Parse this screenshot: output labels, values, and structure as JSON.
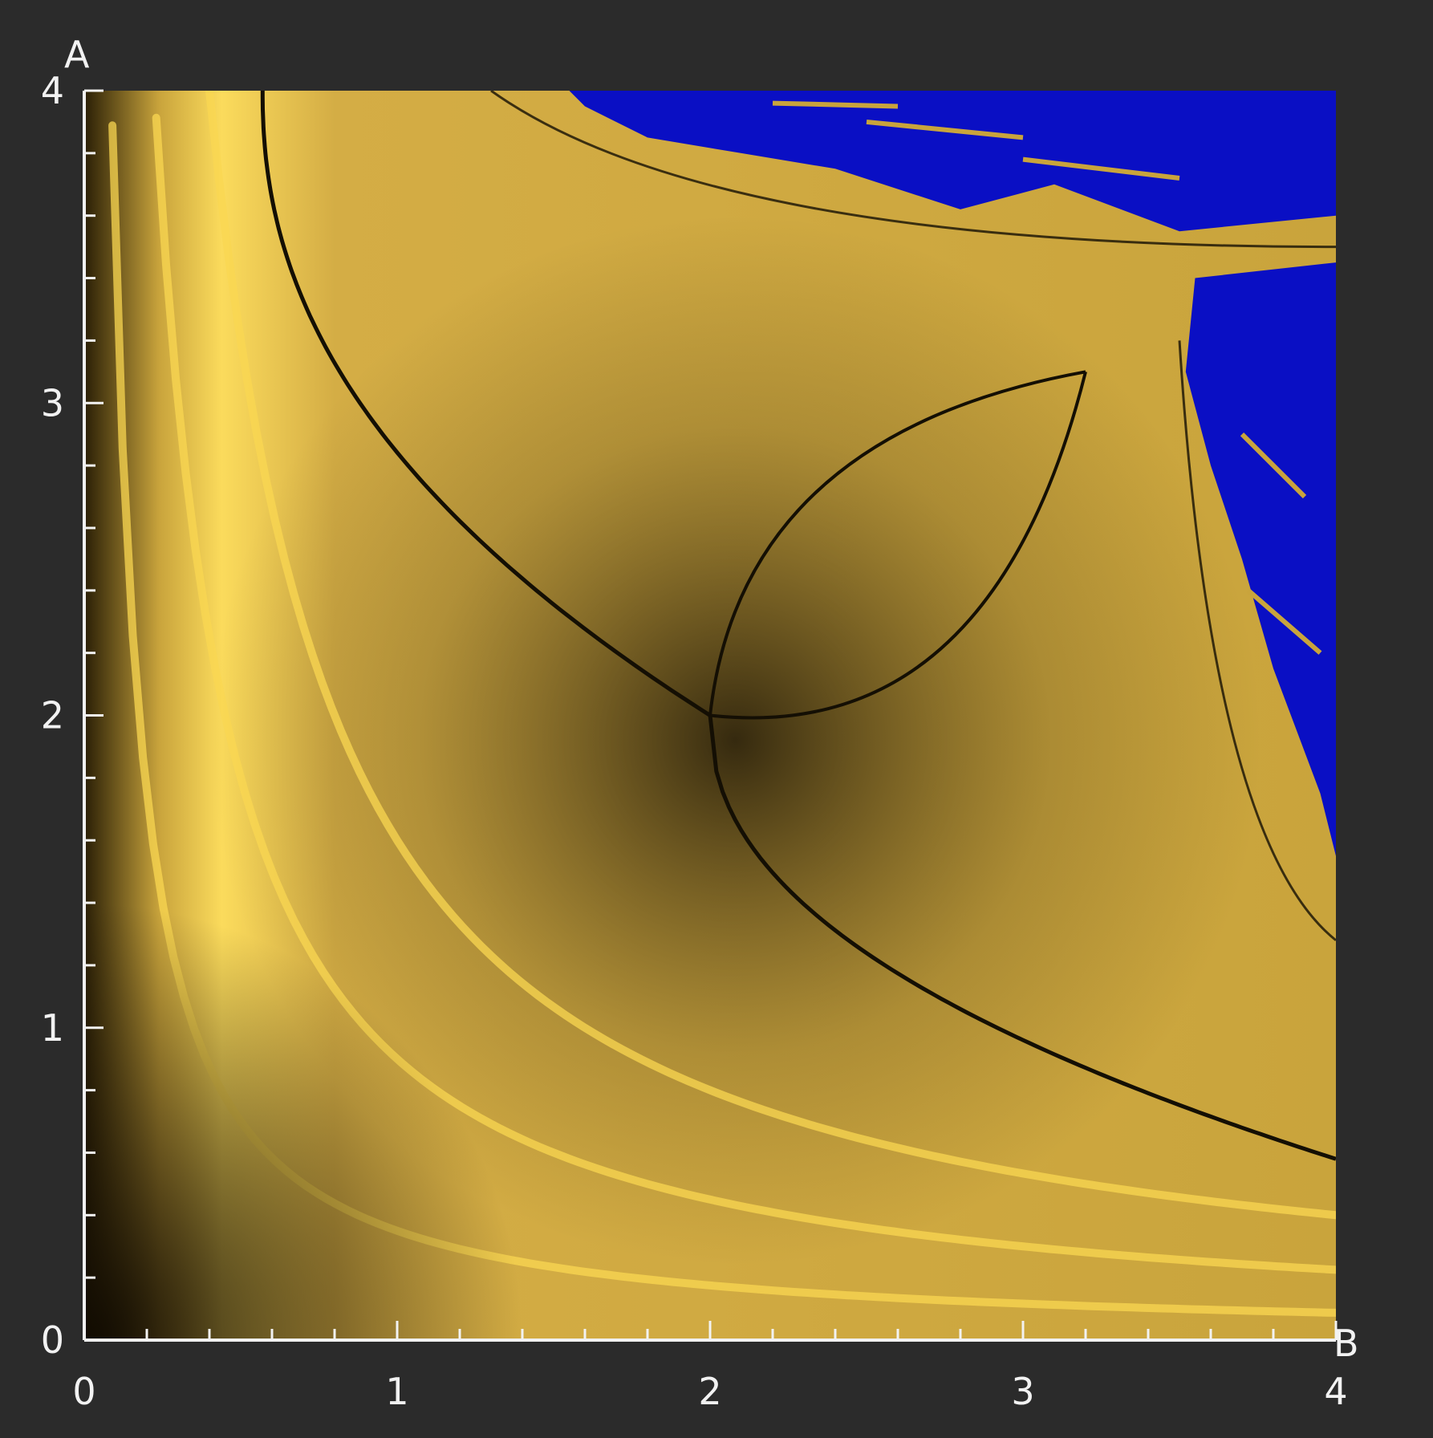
{
  "chart_data": {
    "type": "heatmap",
    "title": "",
    "xlabel": "B",
    "ylabel": "A",
    "xlim": [
      0,
      4
    ],
    "ylim": [
      0,
      4
    ],
    "x_ticks": [
      "0",
      "1",
      "2",
      "3",
      "4"
    ],
    "y_ticks": [
      "0",
      "1",
      "2",
      "3",
      "4"
    ],
    "minor_ticks_per_unit": 5,
    "colors": {
      "background": "#2b2b2b",
      "axis": "#f2f2f2",
      "stable_bright": "#f9d752",
      "stable_mid": "#c9a43c",
      "stable_dark": "#140f04",
      "chaotic": "#0a0fc4"
    },
    "description_regions": {
      "stable": "gold gradient (Lyapunov exponent negative)",
      "chaotic": "blue (upper-right region)"
    }
  }
}
